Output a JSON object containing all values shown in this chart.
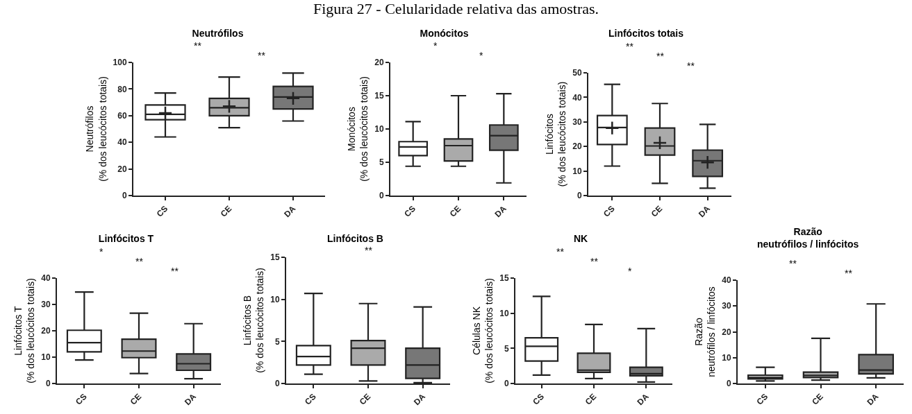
{
  "chart_data": [
    {
      "type": "other",
      "title": "Figura 27 - Celularidade relativa das amostras."
    },
    {
      "type": "box",
      "title": "Neutrófilos",
      "ylabel": "Neutrófilos\n(% dos leucócitos totais)",
      "categories": [
        "CS",
        "CE",
        "DA"
      ],
      "colors": [
        "#ffffff",
        "#aaaaaa",
        "#777777"
      ],
      "ylim": [
        0,
        100
      ],
      "yticks": [
        0,
        20,
        40,
        60,
        80,
        100
      ],
      "boxes": [
        {
          "low": 44,
          "q1": 57,
          "median": 61,
          "q3": 68,
          "high": 77,
          "mean": 62
        },
        {
          "low": 51,
          "q1": 60,
          "median": 66,
          "q3": 73,
          "high": 89,
          "mean": 67
        },
        {
          "low": 56,
          "q1": 65,
          "median": 74,
          "q3": 82,
          "high": 92,
          "mean": 73
        }
      ],
      "annotations": [
        "**",
        "**"
      ]
    },
    {
      "type": "box",
      "title": "Monócitos",
      "ylabel": "Monócitos\n(% dos leucócitos totais)",
      "categories": [
        "CS",
        "CE",
        "DA"
      ],
      "colors": [
        "#ffffff",
        "#aaaaaa",
        "#777777"
      ],
      "ylim": [
        0,
        20
      ],
      "yticks": [
        0,
        5,
        10,
        15,
        20
      ],
      "boxes": [
        {
          "low": 4.4,
          "q1": 6.0,
          "median": 7.3,
          "q3": 8.1,
          "high": 11.1
        },
        {
          "low": 4.4,
          "q1": 5.2,
          "median": 7.5,
          "q3": 8.5,
          "high": 15.0
        },
        {
          "low": 1.9,
          "q1": 6.8,
          "median": 9.0,
          "q3": 10.6,
          "high": 15.3
        }
      ],
      "annotations": [
        "*",
        "*"
      ]
    },
    {
      "type": "box",
      "title": "Linfócitos totais",
      "ylabel": "Linfócitos\n(% dos leucócitos totais)",
      "categories": [
        "CS",
        "CE",
        "DA"
      ],
      "colors": [
        "#ffffff",
        "#aaaaaa",
        "#777777"
      ],
      "ylim": [
        0,
        50
      ],
      "yticks": [
        0,
        10,
        20,
        30,
        40,
        50
      ],
      "boxes": [
        {
          "low": 12,
          "q1": 20.8,
          "median": 27.7,
          "q3": 32.6,
          "high": 45.3,
          "mean": 27.5
        },
        {
          "low": 5,
          "q1": 16.5,
          "median": 20.2,
          "q3": 27.5,
          "high": 37.5,
          "mean": 21.5
        },
        {
          "low": 3,
          "q1": 7.8,
          "median": 14.2,
          "q3": 18.5,
          "high": 29,
          "mean": 13.5
        }
      ],
      "annotations": [
        "**",
        "**",
        "**"
      ]
    },
    {
      "type": "box",
      "title": "Linfócitos T",
      "ylabel": "Linfócitos T\n(% dos leucócitos totais)",
      "categories": [
        "CS",
        "CE",
        "DA"
      ],
      "colors": [
        "#ffffff",
        "#aaaaaa",
        "#777777"
      ],
      "ylim": [
        0,
        40
      ],
      "yticks": [
        0,
        10,
        20,
        30,
        40
      ],
      "boxes": [
        {
          "low": 8.9,
          "q1": 12,
          "median": 15.5,
          "q3": 20.2,
          "high": 34.7
        },
        {
          "low": 3.8,
          "q1": 9.8,
          "median": 12.3,
          "q3": 16.8,
          "high": 26.7
        },
        {
          "low": 1.8,
          "q1": 5,
          "median": 7.5,
          "q3": 11.2,
          "high": 22.7
        }
      ],
      "annotations": [
        "*",
        "**",
        "**"
      ]
    },
    {
      "type": "box",
      "title": "Linfócitos B",
      "ylabel": "Linfócitos B\n(% dos leucócitos totais)",
      "categories": [
        "CS",
        "CE",
        "DA"
      ],
      "colors": [
        "#ffffff",
        "#aaaaaa",
        "#777777"
      ],
      "ylim": [
        0,
        15
      ],
      "yticks": [
        0,
        5,
        10,
        15
      ],
      "boxes": [
        {
          "low": 1.1,
          "q1": 2.2,
          "median": 3.2,
          "q3": 4.5,
          "high": 10.7
        },
        {
          "low": 0.3,
          "q1": 2.2,
          "median": 4.2,
          "q3": 5.1,
          "high": 9.5
        },
        {
          "low": 0.1,
          "q1": 0.6,
          "median": 2.2,
          "q3": 4.2,
          "high": 9.1
        }
      ],
      "annotations": [
        "**"
      ]
    },
    {
      "type": "box",
      "title": "NK",
      "ylabel": "Células NK\n(% dos leucócitos totais)",
      "categories": [
        "CS",
        "CE",
        "DA"
      ],
      "colors": [
        "#ffffff",
        "#aaaaaa",
        "#777777"
      ],
      "ylim": [
        0,
        15
      ],
      "yticks": [
        0,
        5,
        10,
        15
      ],
      "boxes": [
        {
          "low": 1.2,
          "q1": 3.2,
          "median": 5.3,
          "q3": 6.5,
          "high": 12.4
        },
        {
          "low": 0.7,
          "q1": 1.6,
          "median": 1.9,
          "q3": 4.3,
          "high": 8.4
        },
        {
          "low": 0.2,
          "q1": 1.1,
          "median": 1.4,
          "q3": 2.3,
          "high": 7.8
        }
      ],
      "annotations": [
        "**",
        "**",
        "*"
      ]
    },
    {
      "type": "box",
      "title": "Razão\nneutrófilos / linfócitos",
      "ylabel": "Razão\nneutrófilos / linfócitos",
      "categories": [
        "CS",
        "CE",
        "DA"
      ],
      "colors": [
        "#ffffff",
        "#aaaaaa",
        "#777777"
      ],
      "ylim": [
        0,
        40
      ],
      "yticks": [
        0,
        10,
        20,
        30,
        40
      ],
      "boxes": [
        {
          "low": 1.0,
          "q1": 1.8,
          "median": 2.3,
          "q3": 3.2,
          "high": 6.3
        },
        {
          "low": 1.3,
          "q1": 2.3,
          "median": 3.1,
          "q3": 4.4,
          "high": 17.5
        },
        {
          "low": 2.2,
          "q1": 3.7,
          "median": 5.2,
          "q3": 11.2,
          "high": 30.8
        }
      ],
      "annotations": [
        "**",
        "**"
      ]
    }
  ]
}
